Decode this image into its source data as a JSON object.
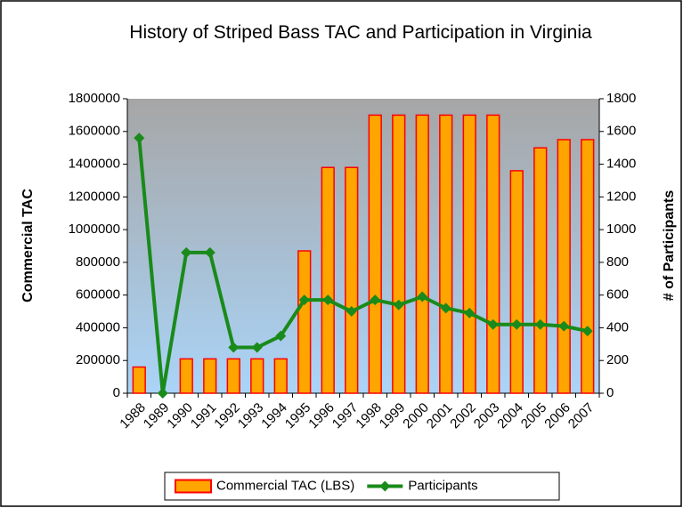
{
  "chart_data": {
    "type": "bar",
    "title": "History of Striped Bass TAC and Participation in Virginia",
    "ylabel": "Commercial TAC",
    "y2label": "# of Participants",
    "categories": [
      "1988",
      "1989",
      "1990",
      "1991",
      "1992",
      "1993",
      "1994",
      "1995",
      "1996",
      "1997",
      "1998",
      "1999",
      "2000",
      "2001",
      "2002",
      "2003",
      "2004",
      "2005",
      "2006",
      "2007"
    ],
    "series": [
      {
        "name": "Commercial TAC (LBS)",
        "type": "bar",
        "color": "#ffa500",
        "edge_color": "#ff0000",
        "values": [
          160000,
          0,
          210000,
          210000,
          210000,
          210000,
          210000,
          870000,
          1380000,
          1380000,
          1700000,
          1700000,
          1700000,
          1700000,
          1700000,
          1700000,
          1360000,
          1500000,
          1550000,
          1550000
        ]
      },
      {
        "name": "Participants",
        "type": "line",
        "axis": "y2",
        "color": "#1a8a1a",
        "values": [
          1560,
          0,
          860,
          860,
          280,
          280,
          350,
          570,
          570,
          500,
          570,
          540,
          590,
          520,
          490,
          420,
          420,
          420,
          410,
          380
        ]
      }
    ],
    "ylim": [
      0,
      1800000
    ],
    "yticks": [
      0,
      200000,
      400000,
      600000,
      800000,
      1000000,
      1200000,
      1400000,
      1600000,
      1800000
    ],
    "y2lim": [
      0,
      1800
    ],
    "y2ticks": [
      0,
      200,
      400,
      600,
      800,
      1000,
      1200,
      1400,
      1600,
      1800
    ],
    "legend": "bottom"
  }
}
